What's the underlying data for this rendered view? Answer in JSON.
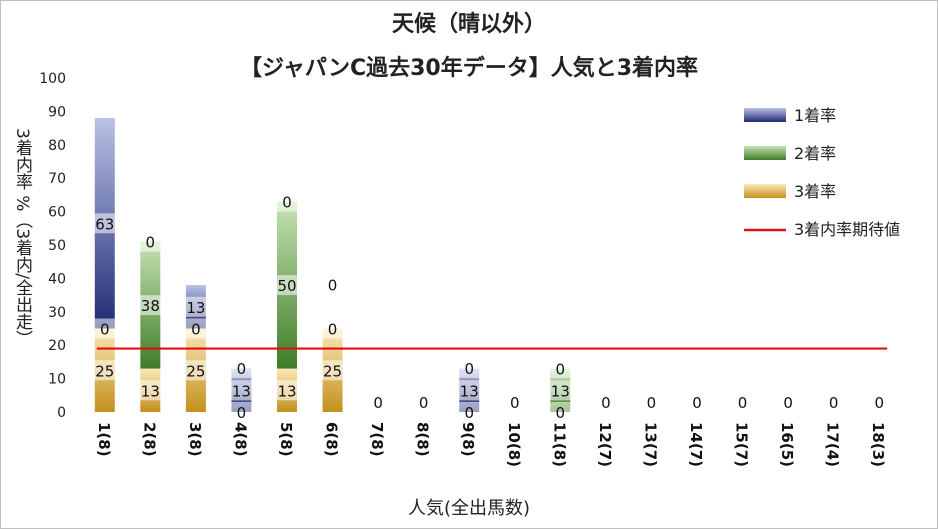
{
  "title_line1": "天候（晴以外）",
  "title_line2": "【ジャパンC過去30年データ】人気と3着内率",
  "ylabel": "3着内率 %（3着内/全出走）",
  "xlabel": "人気(全出馬数)",
  "colors": {
    "first": "#3a4c94",
    "second": "#5d9240",
    "third": "#d9a32a",
    "expect": "#e01010"
  },
  "chart_data": {
    "type": "bar",
    "stacked": true,
    "title": "天候（晴以外） 【ジャパンC過去30年データ】人気と3着内率",
    "xlabel": "人気(全出馬数)",
    "ylabel": "3着内率 %（3着内/全出走）",
    "ylim": [
      0,
      100
    ],
    "yticks": [
      0,
      10,
      20,
      30,
      40,
      50,
      60,
      70,
      80,
      90,
      100
    ],
    "legend_position": "top-right",
    "categories": [
      "1(8)",
      "2(8)",
      "3(8)",
      "4(8)",
      "5(8)",
      "6(8)",
      "7(8)",
      "8(8)",
      "9(8)",
      "10(8)",
      "11(8)",
      "12(7)",
      "13(7)",
      "14(7)",
      "15(7)",
      "16(5)",
      "17(4)",
      "18(3)"
    ],
    "series": [
      {
        "name": "3着率",
        "values": [
          25,
          13,
          25,
          0,
          13,
          25,
          0,
          0,
          0,
          0,
          0,
          0,
          0,
          0,
          0,
          0,
          0,
          0
        ]
      },
      {
        "name": "2着率",
        "values": [
          0,
          38,
          0,
          0,
          50,
          0,
          0,
          0,
          0,
          0,
          13,
          0,
          0,
          0,
          0,
          0,
          0,
          0
        ]
      },
      {
        "name": "1着率",
        "values": [
          63,
          0,
          13,
          13,
          0,
          0,
          0,
          0,
          13,
          0,
          0,
          0,
          0,
          0,
          0,
          0,
          0,
          0
        ]
      }
    ],
    "reference_line": {
      "name": "3着内率期待値",
      "value": 19
    }
  }
}
